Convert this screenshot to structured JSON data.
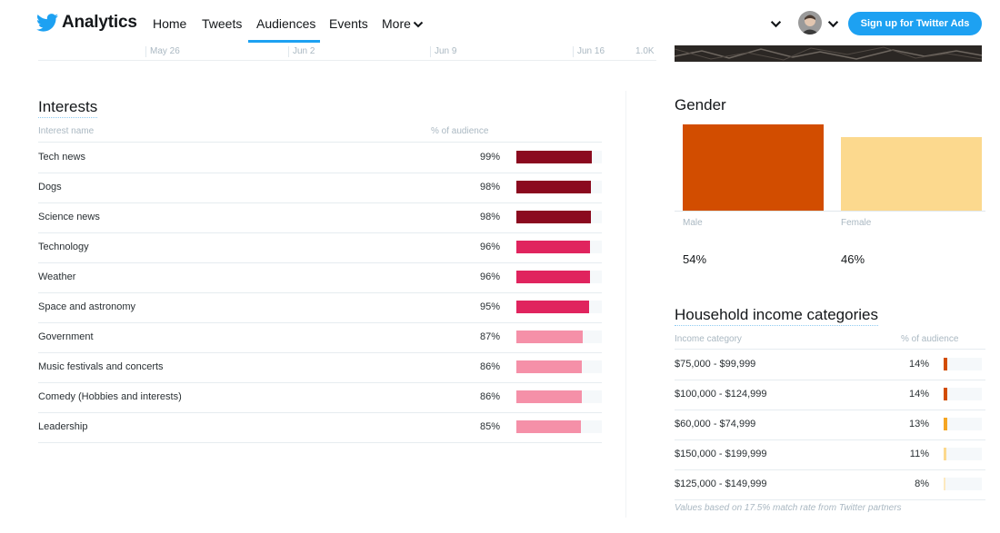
{
  "nav": {
    "brand": "Analytics",
    "links": [
      "Home",
      "Tweets",
      "Audiences",
      "Events",
      "More"
    ],
    "active_link": "Audiences",
    "cta_label": "Sign up for Twitter Ads"
  },
  "date_axis": {
    "ticks": [
      "May 26",
      "Jun 2",
      "Jun 9",
      "Jun 16"
    ],
    "right_value": "1.0K"
  },
  "interests": {
    "title": "Interests",
    "col_name": "Interest name",
    "col_pct": "% of audience",
    "rows": [
      {
        "name": "Tech news",
        "pct": "99%",
        "value": 99,
        "color": "#8b0a1f"
      },
      {
        "name": "Dogs",
        "pct": "98%",
        "value": 98,
        "color": "#8b0a1f"
      },
      {
        "name": "Science news",
        "pct": "98%",
        "value": 98,
        "color": "#8b0a1f"
      },
      {
        "name": "Technology",
        "pct": "96%",
        "value": 96,
        "color": "#e0245e"
      },
      {
        "name": "Weather",
        "pct": "96%",
        "value": 96,
        "color": "#e0245e"
      },
      {
        "name": "Space and astronomy",
        "pct": "95%",
        "value": 95,
        "color": "#e0245e"
      },
      {
        "name": "Government",
        "pct": "87%",
        "value": 87,
        "color": "#f590a8"
      },
      {
        "name": "Music festivals and concerts",
        "pct": "86%",
        "value": 86,
        "color": "#f590a8"
      },
      {
        "name": "Comedy (Hobbies and interests)",
        "pct": "86%",
        "value": 86,
        "color": "#f590a8"
      },
      {
        "name": "Leadership",
        "pct": "85%",
        "value": 85,
        "color": "#f590a8"
      }
    ]
  },
  "gender": {
    "title": "Gender",
    "items": [
      {
        "label": "Male",
        "pct": "54%",
        "value": 54,
        "color": "#d24d00"
      },
      {
        "label": "Female",
        "pct": "46%",
        "value": 46,
        "color": "#fcd98e"
      }
    ]
  },
  "income": {
    "title": "Household income categories",
    "col_name": "Income category",
    "col_pct": "% of audience",
    "rows": [
      {
        "name": "$75,000 - $99,999",
        "pct": "14%",
        "value": 14,
        "color": "#d24d00"
      },
      {
        "name": "$100,000 - $124,999",
        "pct": "14%",
        "value": 14,
        "color": "#d24d00"
      },
      {
        "name": "$60,000 - $74,999",
        "pct": "13%",
        "value": 13,
        "color": "#f5a623"
      },
      {
        "name": "$150,000 - $199,999",
        "pct": "11%",
        "value": 11,
        "color": "#fcd98e"
      },
      {
        "name": "$125,000 - $149,999",
        "pct": "8%",
        "value": 8,
        "color": "#fde9c0"
      }
    ],
    "footnote": "Values based on 17.5% match rate from Twitter partners"
  }
}
